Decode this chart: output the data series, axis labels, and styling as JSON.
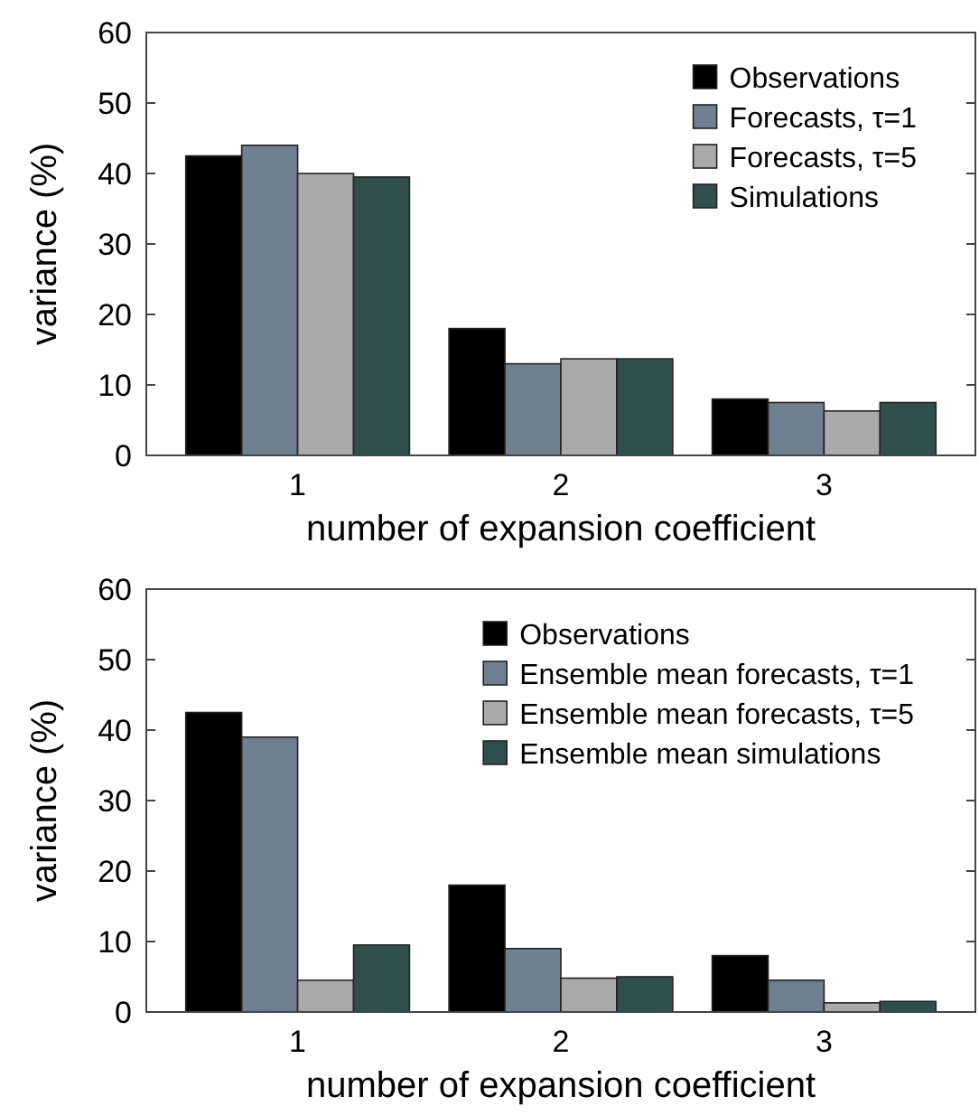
{
  "chart_data": [
    {
      "type": "bar",
      "categories": [
        "1",
        "2",
        "3"
      ],
      "xlabel": "number of expansion coefficient",
      "ylabel": "variance (%)",
      "ylim": [
        0,
        60
      ],
      "yticks": [
        0,
        10,
        20,
        30,
        40,
        50,
        60
      ],
      "legend": "top right",
      "grid": false,
      "series": [
        {
          "name": "Observations",
          "color": "#000000",
          "values": [
            42.5,
            18,
            8
          ]
        },
        {
          "name": "Forecasts, τ=1",
          "color": "#6f8090",
          "values": [
            44,
            13,
            7.5
          ]
        },
        {
          "name": "Forecasts, τ=5",
          "color": "#aaaaaa",
          "values": [
            40,
            13.7,
            6.3
          ]
        },
        {
          "name": "Simulations",
          "color": "#2f4f4c",
          "values": [
            39.5,
            13.7,
            7.5
          ]
        }
      ]
    },
    {
      "type": "bar",
      "categories": [
        "1",
        "2",
        "3"
      ],
      "xlabel": "number of expansion coefficient",
      "ylabel": "variance (%)",
      "ylim": [
        0,
        60
      ],
      "yticks": [
        0,
        10,
        20,
        30,
        40,
        50,
        60
      ],
      "legend": "top right",
      "grid": false,
      "series": [
        {
          "name": "Observations",
          "color": "#000000",
          "values": [
            42.5,
            18,
            8
          ]
        },
        {
          "name": "Ensemble mean forecasts, τ=1",
          "color": "#6f8090",
          "values": [
            39,
            9,
            4.5
          ]
        },
        {
          "name": "Ensemble mean forecasts, τ=5",
          "color": "#aaaaaa",
          "values": [
            4.5,
            4.8,
            1.3
          ]
        },
        {
          "name": "Ensemble mean simulations",
          "color": "#2f4f4c",
          "values": [
            9.5,
            5,
            1.5
          ]
        }
      ]
    }
  ]
}
